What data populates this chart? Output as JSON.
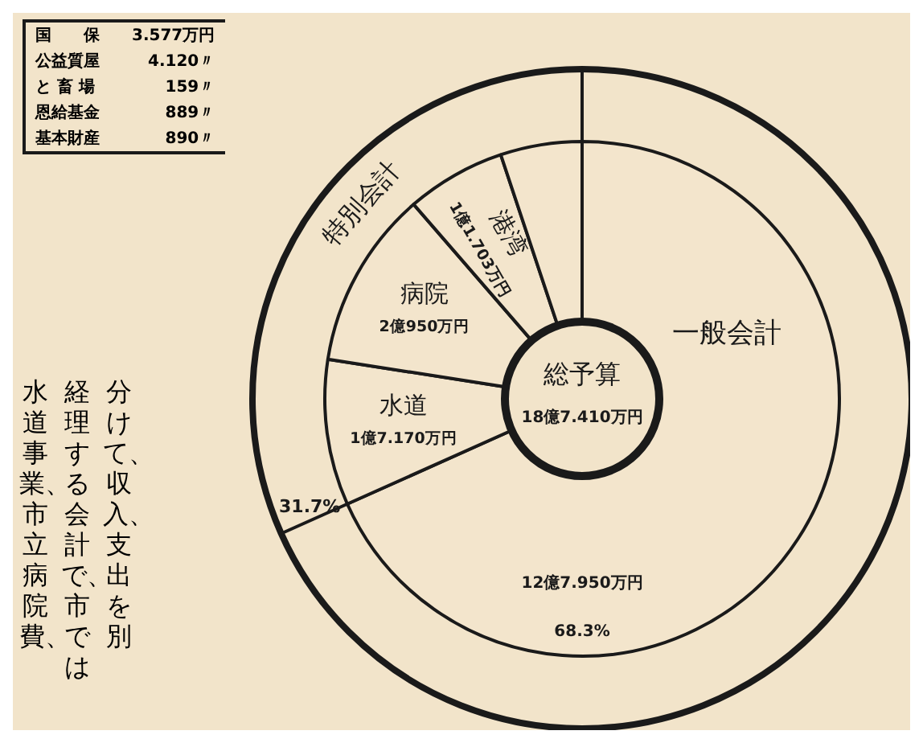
{
  "chart_data": {
    "type": "donut",
    "title": "総予算",
    "subtitle": "18億7.410万円",
    "categories": [
      "一般会計",
      "水道",
      "病院",
      "港湾",
      null
    ],
    "values": [
      68.3,
      9.16,
      11.18,
      6.24,
      5.12
    ],
    "value_labels": [
      "68.3%",
      null,
      null,
      null,
      null
    ],
    "colors": [
      "#f3e5cc",
      "#f3e5cc",
      "#f3e5cc",
      "#f3e5cc",
      "#f3e5cc"
    ],
    "legend": false,
    "annotations": [
      "特別会計",
      "31.7%",
      "12億7.950万円",
      "1億7.170万円",
      "2億950万円",
      "1億1.703万円",
      "国　　保 3.577万円",
      "公益質屋 4.120〃",
      "と 畜 場 159〃",
      "恩給基金 889〃",
      "基本財産 890〃",
      "分けて、収入、支出を別",
      "経理する会計で、市では",
      "水道事業、市立病院費、"
    ]
  }
}
